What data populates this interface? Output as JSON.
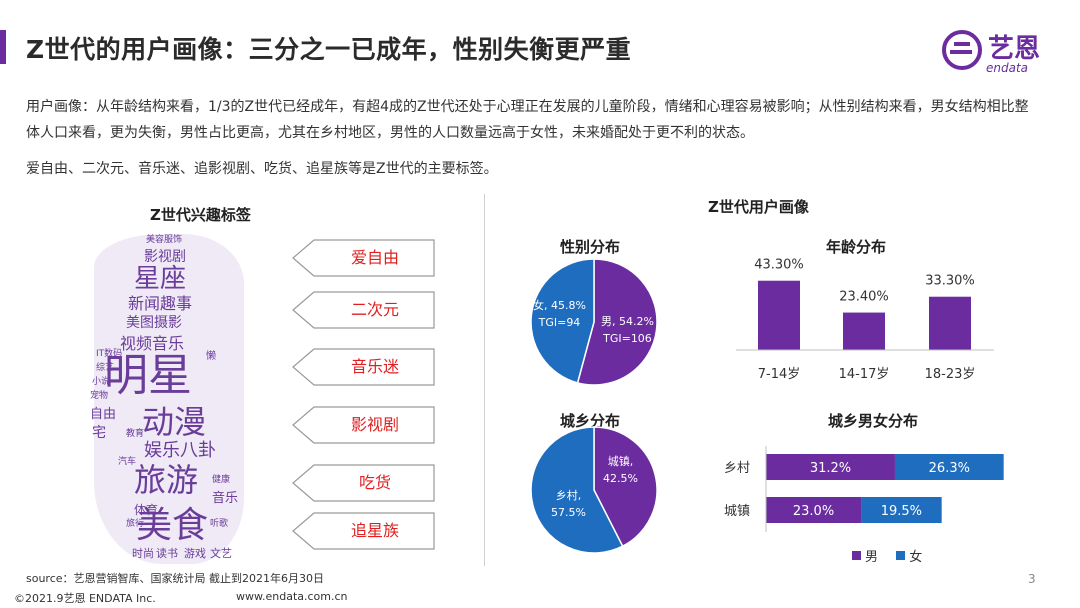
{
  "header": {
    "title": "Z世代的用户画像：三分之一已成年，性别失衡更严重",
    "logo_text": "艺恩",
    "logo_sub": "endata"
  },
  "description": {
    "para1": "用户画像：从年龄结构来看，1/3的Z世代已经成年，有超4成的Z世代还处于心理正在发展的儿童阶段，情绪和心理容易被影响；从性别结构来看，男女结构相比整体人口来看，更为失衡，男性占比更高，尤其在乡村地区，男性的人口数量远高于女性，未来婚配处于更不利的状态。",
    "para2": "爱自由、二次元、音乐迷、追影视剧、吃货、追星族等是Z世代的主要标签。"
  },
  "interest": {
    "title": "Z世代兴趣标签",
    "cloud_words": [
      "美容服饰",
      "影视剧",
      "星座",
      "新闻趣事",
      "美图摄影",
      "视频音乐",
      "IT数码",
      "综艺",
      "小说",
      "宠物",
      "明星",
      "懒",
      "动漫",
      "自由",
      "宅",
      "教育",
      "娱乐八卦",
      "汽车",
      "旅游",
      "健康",
      "音乐",
      "体育",
      "旅行",
      "美食",
      "听歌",
      "时尚",
      "读书",
      "游戏",
      "文艺"
    ],
    "tags": [
      "爱自由",
      "二次元",
      "音乐迷",
      "影视剧",
      "吃货",
      "追星族"
    ]
  },
  "portrait_title": "Z世代用户画像",
  "colors": {
    "purple": "#6a2c9f",
    "blue": "#1f6dbf",
    "accent": "#6a2c9f",
    "tag_red": "#e02020"
  },
  "chart_data": [
    {
      "type": "pie",
      "title": "性别分布",
      "slices": [
        {
          "label": "男",
          "value": 54.2,
          "value_text": "54.2%",
          "tgi": "TGI=106",
          "color": "#6a2c9f"
        },
        {
          "label": "女",
          "value": 45.8,
          "value_text": "45.8%",
          "tgi": "TGI=94",
          "color": "#1f6dbf"
        }
      ]
    },
    {
      "type": "pie",
      "title": "城乡分布",
      "slices": [
        {
          "label": "城镇",
          "value": 42.5,
          "value_text": "42.5%",
          "color": "#6a2c9f"
        },
        {
          "label": "乡村",
          "value": 57.5,
          "value_text": "57.5%",
          "color": "#1f6dbf"
        }
      ]
    },
    {
      "type": "bar",
      "title": "年龄分布",
      "categories": [
        "7-14岁",
        "14-17岁",
        "18-23岁"
      ],
      "values": [
        43.3,
        23.4,
        33.3
      ],
      "value_labels": [
        "43.30%",
        "23.40%",
        "33.30%"
      ],
      "ylim": [
        0,
        50
      ],
      "color": "#6a2c9f"
    },
    {
      "type": "bar",
      "title": "城乡男女分布",
      "orientation": "horizontal",
      "stacked": true,
      "categories": [
        "乡村",
        "城镇"
      ],
      "series": [
        {
          "name": "男",
          "values": [
            31.2,
            23.0
          ],
          "labels": [
            "31.2%",
            "23.0%"
          ],
          "color": "#6a2c9f"
        },
        {
          "name": "女",
          "values": [
            26.3,
            19.5
          ],
          "labels": [
            "26.3%",
            "19.5%"
          ],
          "color": "#1f6dbf"
        }
      ],
      "xlim": [
        0,
        60
      ],
      "legend": "bottom-right"
    }
  ],
  "footer": {
    "source": "source：艺恩营销智库、国家统计局     截止到2021年6月30日",
    "copyright": "©2021.9艺恩 ENDATA Inc.",
    "url": "www.endata.com.cn",
    "page": "3"
  }
}
